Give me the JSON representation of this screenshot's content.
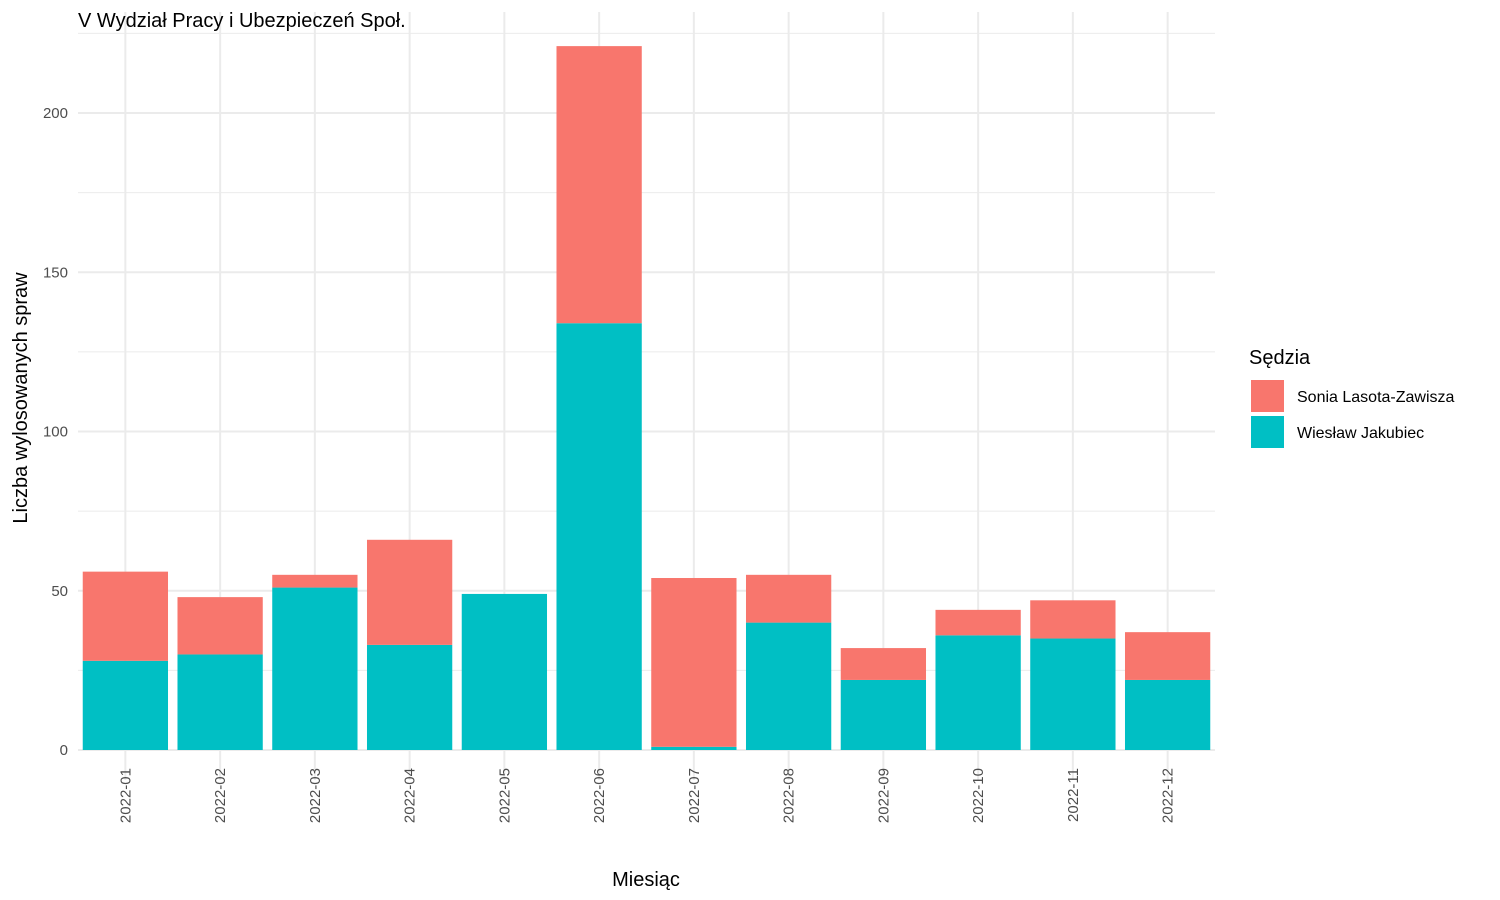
{
  "chart_data": {
    "type": "bar",
    "stacked": true,
    "title": "V Wydział Pracy i Ubezpieczeń Społ.",
    "xlabel": "Miesiąc",
    "ylabel": "Liczba wylosowanych spraw",
    "categories": [
      "2022-01",
      "2022-02",
      "2022-03",
      "2022-04",
      "2022-05",
      "2022-06",
      "2022-07",
      "2022-08",
      "2022-09",
      "2022-10",
      "2022-11",
      "2022-12"
    ],
    "series": [
      {
        "name": "Wiesław Jakubiec",
        "color": "#00BFC4",
        "values": [
          28,
          30,
          51,
          33,
          49,
          134,
          1,
          40,
          22,
          36,
          35,
          22
        ]
      },
      {
        "name": "Sonia Lasota-Zawisza",
        "color": "#F8766D",
        "values": [
          28,
          18,
          4,
          33,
          0,
          87,
          53,
          15,
          10,
          8,
          12,
          15
        ]
      }
    ],
    "ylim": [
      0,
      221
    ],
    "yticks": [
      0,
      50,
      100,
      150,
      200
    ],
    "grid": true,
    "legend": {
      "title": "Sędzia",
      "position": "right",
      "order": [
        "Sonia Lasota-Zawisza",
        "Wiesław Jakubiec"
      ]
    }
  }
}
